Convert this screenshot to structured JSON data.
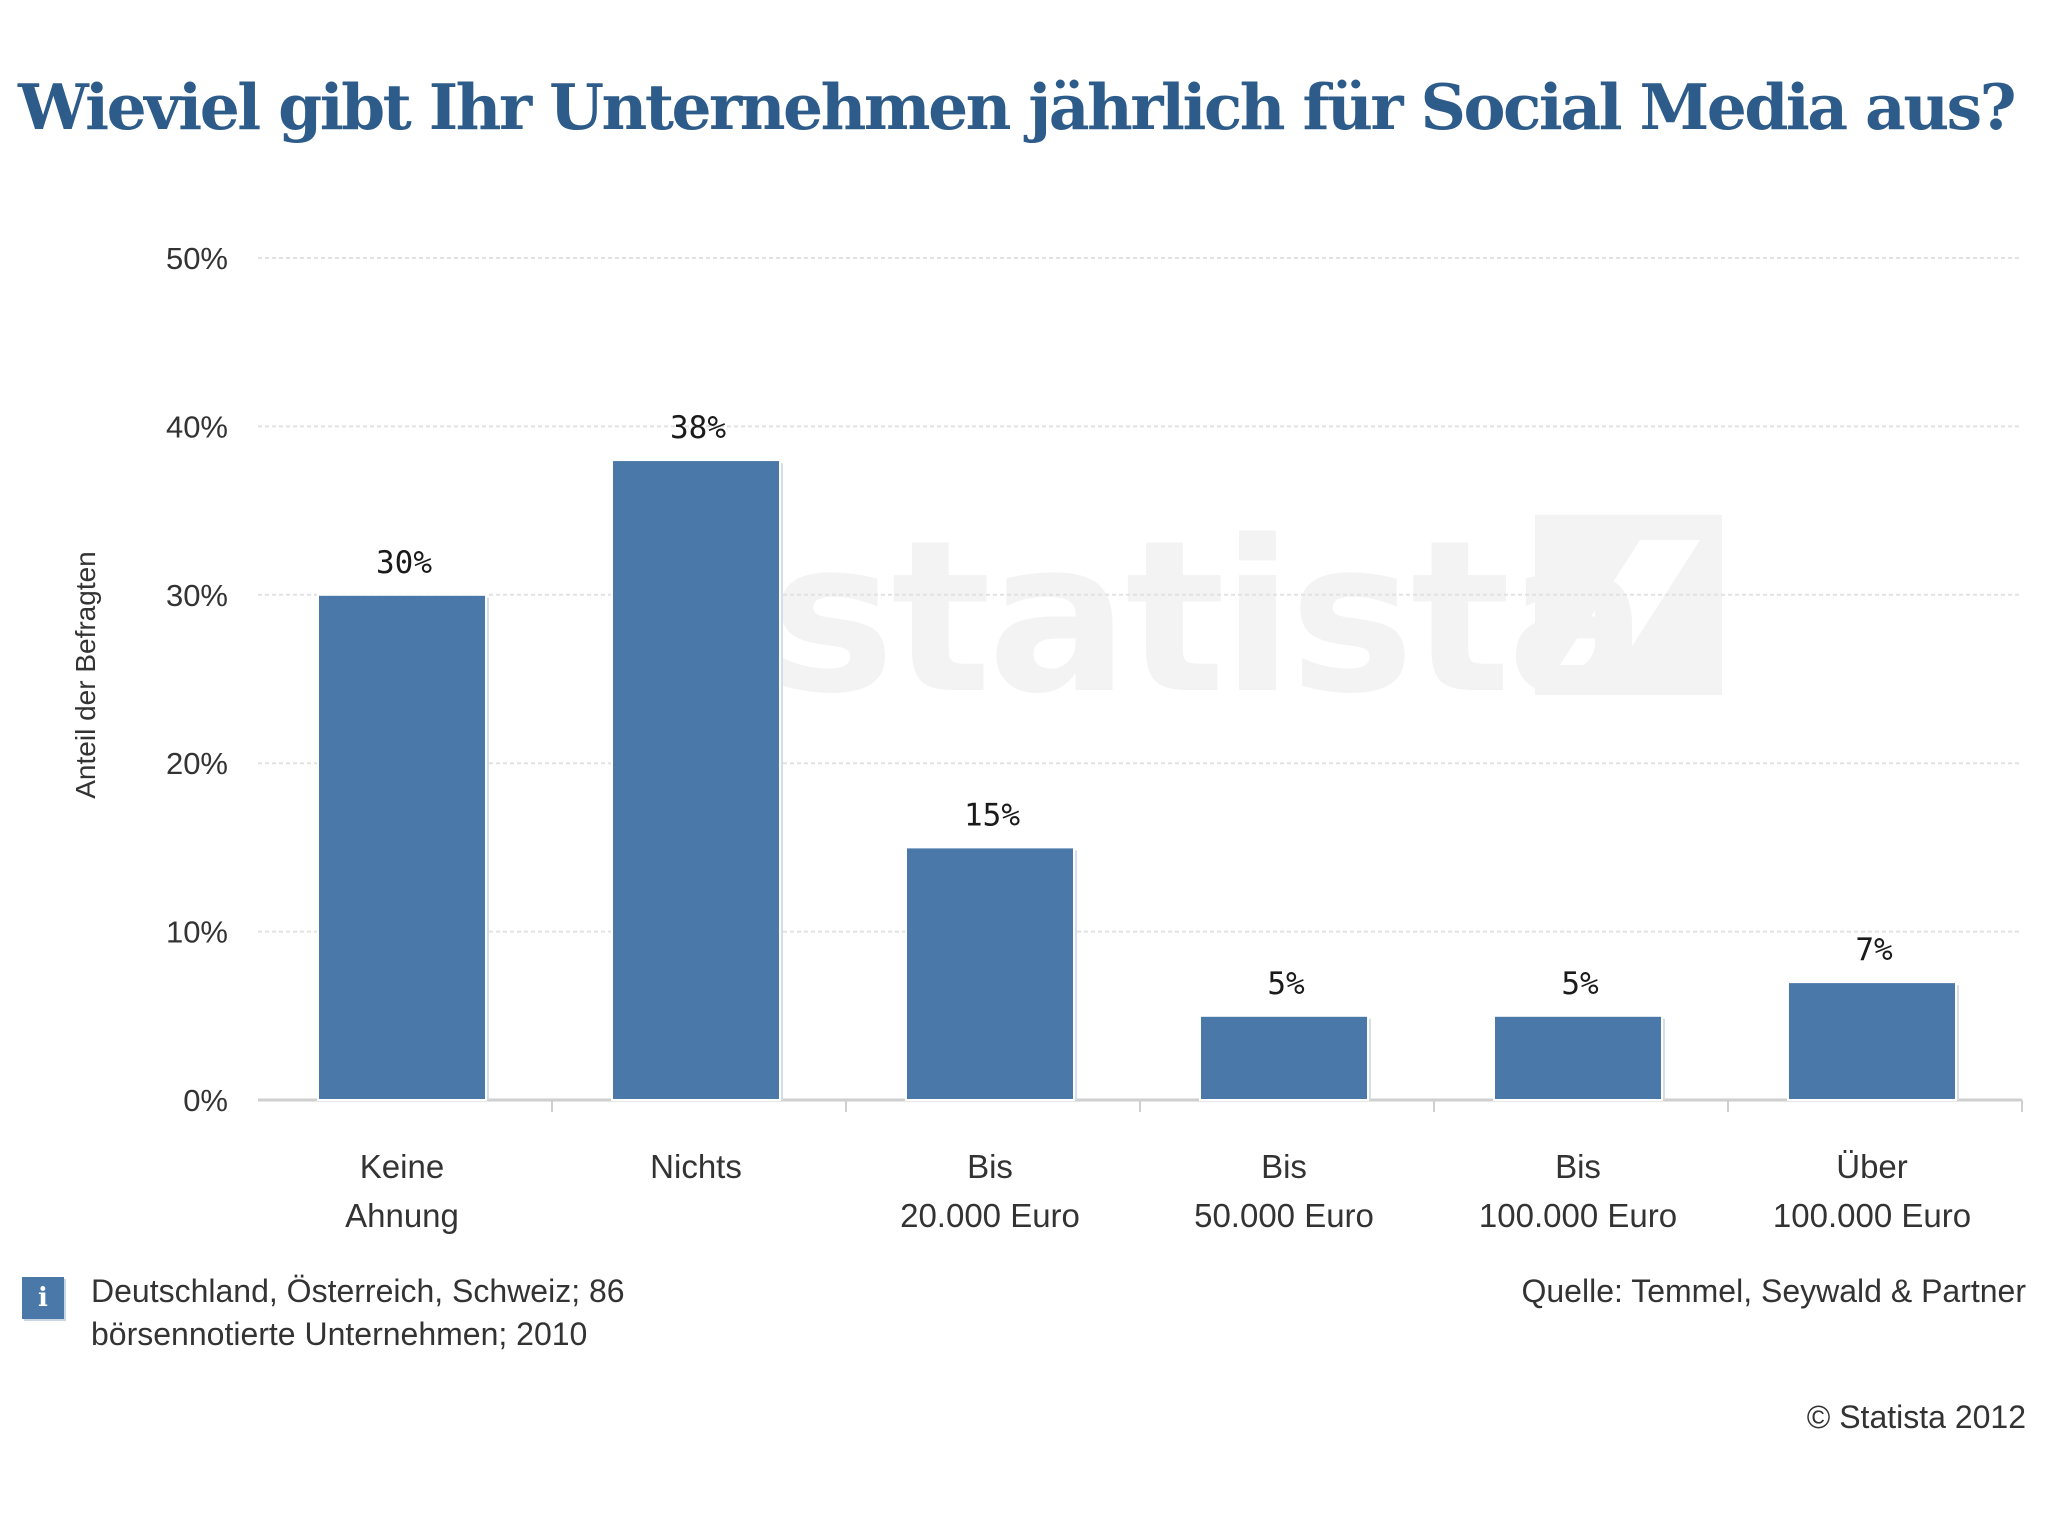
{
  "chart_data": {
    "type": "bar",
    "title": "Wieviel gibt Ihr Unternehmen jährlich für Social Media aus?",
    "xlabel": "",
    "ylabel": "Anteil der Befragten",
    "categories": [
      [
        "Keine",
        "Ahnung"
      ],
      [
        "Nichts"
      ],
      [
        "Bis",
        "20.000 Euro"
      ],
      [
        "Bis",
        "50.000 Euro"
      ],
      [
        "Bis",
        "100.000 Euro"
      ],
      [
        "Über",
        "100.000 Euro"
      ]
    ],
    "values": [
      30,
      38,
      15,
      5,
      5,
      7
    ],
    "value_labels": [
      "30%",
      "38%",
      "15%",
      "5%",
      "5%",
      "7%"
    ],
    "ylim": [
      0,
      50
    ],
    "yticks": [
      0,
      10,
      20,
      30,
      40,
      50
    ],
    "ytick_labels": [
      "0%",
      "10%",
      "20%",
      "30%",
      "40%",
      "50%"
    ],
    "grid": true,
    "bar_color": "#4a78a8",
    "watermark": "statista"
  },
  "footer": {
    "info_icon": "info-icon",
    "info_line1": "Deutschland, Österreich, Schweiz; 86",
    "info_line2": "börsennotierte Unternehmen; 2010",
    "source": "Quelle: Temmel, Seywald & Partner",
    "copyright": "© Statista 2012"
  }
}
